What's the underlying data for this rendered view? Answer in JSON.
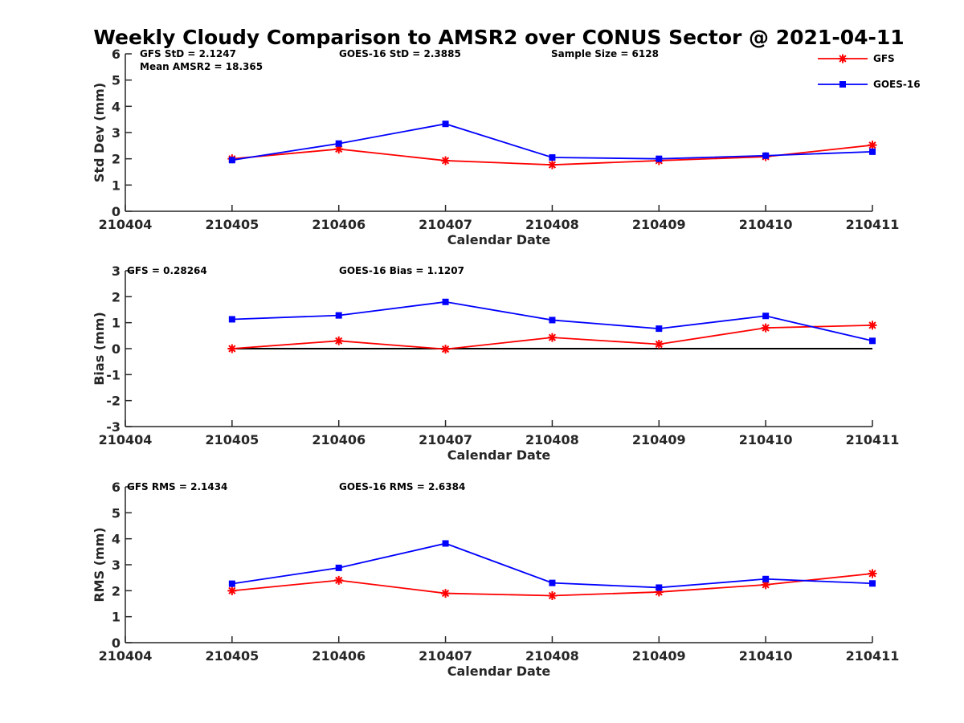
{
  "title": "Weekly Cloudy Comparison to AMSR2 over CONUS Sector @ 2021-04-11",
  "legend": {
    "placement": "top-right",
    "entries": [
      {
        "label": "GFS",
        "color": "#ff0000",
        "marker": "asterisk"
      },
      {
        "label": "GOES-16",
        "color": "#0000ff",
        "marker": "square"
      }
    ]
  },
  "chart_data": [
    {
      "type": "line",
      "xlabel": "Calendar Date",
      "ylabel": "Std Dev (mm)",
      "x": [
        "210404",
        "210405",
        "210406",
        "210407",
        "210408",
        "210409",
        "210410",
        "210411"
      ],
      "yticks": [
        "0",
        "1",
        "2",
        "3",
        "4",
        "5",
        "6"
      ],
      "ylim": [
        0,
        6
      ],
      "grid": false,
      "annotations": [
        "GFS StD = 2.1247",
        "Mean AMSR2 = 18.365",
        "GOES-16 StD = 2.3885",
        "Sample Size = 6128"
      ],
      "series": [
        {
          "name": "GFS",
          "color": "#ff0000",
          "marker": "asterisk",
          "x": [
            "210405",
            "210406",
            "210407",
            "210408",
            "210409",
            "210410",
            "210411"
          ],
          "values": [
            2.0,
            2.37,
            1.93,
            1.77,
            1.93,
            2.08,
            2.52
          ]
        },
        {
          "name": "GOES-16",
          "color": "#0000ff",
          "marker": "square",
          "x": [
            "210405",
            "210406",
            "210407",
            "210408",
            "210409",
            "210410",
            "210411"
          ],
          "values": [
            1.95,
            2.58,
            3.33,
            2.05,
            2.0,
            2.12,
            2.27
          ]
        }
      ]
    },
    {
      "type": "line",
      "xlabel": "Calendar Date",
      "ylabel": "Bias (mm)",
      "x": [
        "210404",
        "210405",
        "210406",
        "210407",
        "210408",
        "210409",
        "210410",
        "210411"
      ],
      "yticks": [
        "-3",
        "-2",
        "-1",
        "0",
        "1",
        "2",
        "3"
      ],
      "ylim": [
        -3,
        3
      ],
      "grid": false,
      "reference_line": 0,
      "annotations": [
        "GFS = 0.28264",
        "GOES-16 Bias  = 1.1207"
      ],
      "series": [
        {
          "name": "GFS",
          "color": "#ff0000",
          "marker": "asterisk",
          "x": [
            "210405",
            "210406",
            "210407",
            "210408",
            "210409",
            "210410",
            "210411"
          ],
          "values": [
            0.0,
            0.3,
            -0.02,
            0.43,
            0.17,
            0.8,
            0.9
          ]
        },
        {
          "name": "GOES-16",
          "color": "#0000ff",
          "marker": "square",
          "x": [
            "210405",
            "210406",
            "210407",
            "210408",
            "210409",
            "210410",
            "210411"
          ],
          "values": [
            1.13,
            1.28,
            1.8,
            1.1,
            0.77,
            1.26,
            0.3
          ]
        }
      ]
    },
    {
      "type": "line",
      "xlabel": "Calendar Date",
      "ylabel": "RMS (mm)",
      "x": [
        "210404",
        "210405",
        "210406",
        "210407",
        "210408",
        "210409",
        "210410",
        "210411"
      ],
      "yticks": [
        "0",
        "1",
        "2",
        "3",
        "4",
        "5",
        "6"
      ],
      "ylim": [
        0,
        6
      ],
      "grid": false,
      "annotations": [
        "GFS RMS = 2.1434",
        "GOES-16 RMS = 2.6384"
      ],
      "series": [
        {
          "name": "GFS",
          "color": "#ff0000",
          "marker": "asterisk",
          "x": [
            "210405",
            "210406",
            "210407",
            "210408",
            "210409",
            "210410",
            "210411"
          ],
          "values": [
            2.0,
            2.4,
            1.9,
            1.81,
            1.95,
            2.23,
            2.66
          ]
        },
        {
          "name": "GOES-16",
          "color": "#0000ff",
          "marker": "square",
          "x": [
            "210405",
            "210406",
            "210407",
            "210408",
            "210409",
            "210410",
            "210411"
          ],
          "values": [
            2.27,
            2.88,
            3.82,
            2.3,
            2.12,
            2.45,
            2.28
          ]
        }
      ]
    }
  ]
}
